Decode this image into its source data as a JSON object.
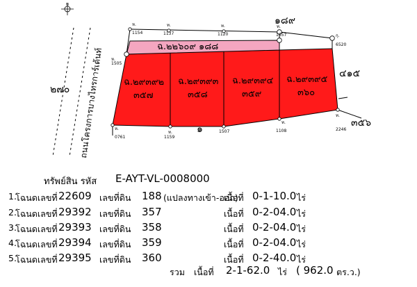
{
  "map": {
    "compass_label": "N",
    "road_left_label": "ถนนโครงการบางไทรการ์เด้นท์",
    "north_neighbor": "๑๘๙",
    "west_number": "๒๗๐",
    "east_number": "๔๑๕",
    "south_east_number": "๓๕๖",
    "south_number": "๑",
    "access_strip_label": "ฉ.๒๒๖๐๙ ๑๘๘",
    "lots": [
      {
        "deed": "ฉ.๒๙๓๙๒",
        "parcel": "๓๕๗"
      },
      {
        "deed": "ฉ.๒๙๓๙๓",
        "parcel": "๓๕๘"
      },
      {
        "deed": "ฉ.๒๙๓๙๔",
        "parcel": "๓๕๙"
      },
      {
        "deed": "ฉ.๒๙๓๙๕",
        "parcel": "๓๖๐"
      }
    ],
    "points": {
      "p1154": "1154",
      "p1137": "1137",
      "p1120": "1120",
      "p1657": "1657",
      "p6520": "6520",
      "p1505": "1505",
      "p0761": "0761",
      "p1159": "1159",
      "p1507": "1507",
      "p1108": "1108",
      "p2246": "2246"
    },
    "point_codes": {
      "h": "ห.",
      "t": "ท.",
      "ko": "กุ."
    }
  },
  "info": {
    "asset_code_label": "ทรัพย์สิน รหัส",
    "asset_code": "E-AYT-VL-0008000",
    "rows": [
      {
        "index": "1.",
        "deed_label": "โฉนดเลขที่",
        "deed_no": "22609",
        "parcel_label": "เลขที่ดิน",
        "parcel_no": "188",
        "note": "(แปลงทางเข้า-ออก)",
        "area_label": "เนื้อที่",
        "area": "0-1-10.0",
        "unit": "ไร่"
      },
      {
        "index": "2.",
        "deed_label": "โฉนดเลขที่",
        "deed_no": "29392",
        "parcel_label": "เลขที่ดิน",
        "parcel_no": "357",
        "note": "",
        "area_label": "เนื้อที่",
        "area": "0-2-04.0",
        "unit": "ไร่"
      },
      {
        "index": "3.",
        "deed_label": "โฉนดเลขที่",
        "deed_no": "29393",
        "parcel_label": "เลขที่ดิน",
        "parcel_no": "358",
        "note": "",
        "area_label": "เนื้อที่",
        "area": "0-2-04.0",
        "unit": "ไร่"
      },
      {
        "index": "4.",
        "deed_label": "โฉนดเลขที่",
        "deed_no": "29394",
        "parcel_label": "เลขที่ดิน",
        "parcel_no": "359",
        "note": "",
        "area_label": "เนื้อที่",
        "area": "0-2-04.0",
        "unit": "ไร่"
      },
      {
        "index": "5.",
        "deed_label": "โฉนดเลขที่",
        "deed_no": "29395",
        "parcel_label": "เลขที่ดิน",
        "parcel_no": "360",
        "note": "",
        "area_label": "เนื้อที่",
        "area": "0-2-40.0",
        "unit": "ไร่"
      }
    ],
    "total_label": "รวม",
    "total_area_label": "เนื้อที่",
    "total_area": "2-1-62.0",
    "total_unit": "ไร่",
    "total_sqw": "( 962.0",
    "total_sqw_unit": "ตร.ว.)"
  },
  "colors": {
    "lot_fill": "#ff1a1a",
    "strip_fill": "#f4a6c0",
    "line": "#000000"
  }
}
